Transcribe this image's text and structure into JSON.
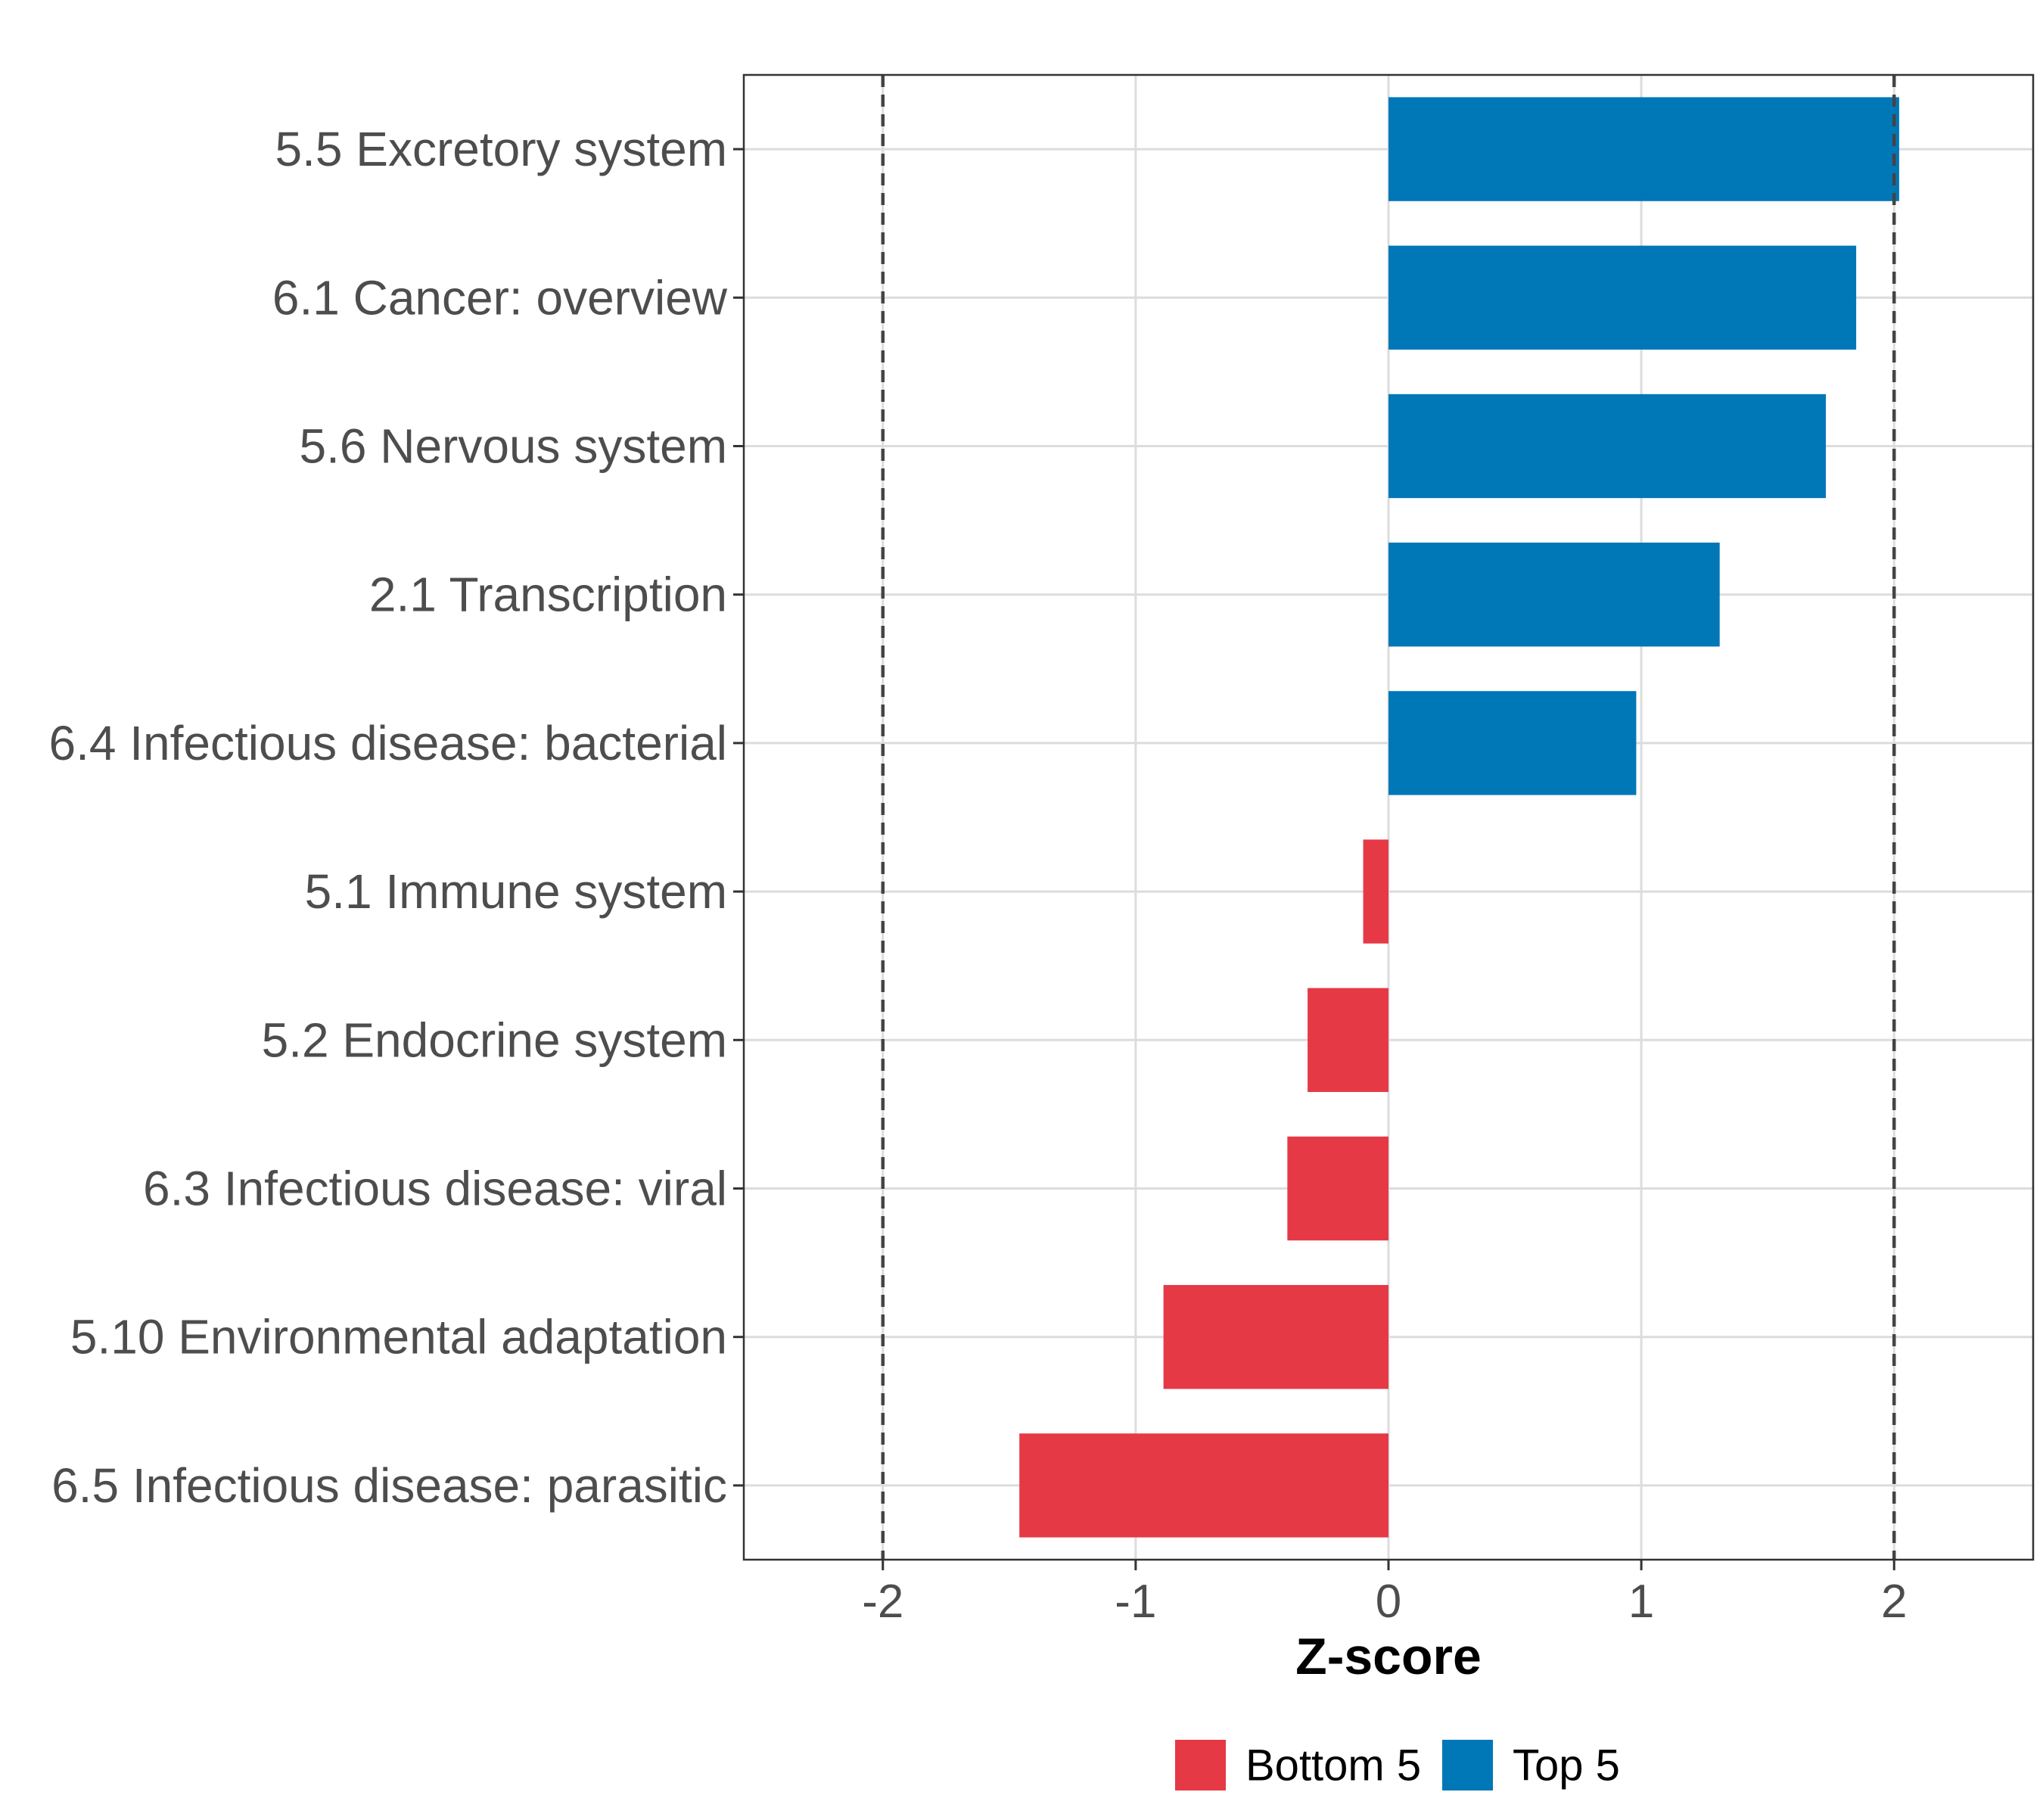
{
  "chart_data": {
    "type": "bar",
    "orientation": "horizontal",
    "title": "",
    "xlabel": "Z-score",
    "ylabel": "",
    "xlim": [
      -2.55,
      2.55
    ],
    "xticks": [
      -2,
      -1,
      0,
      1,
      2
    ],
    "xtick_labels": [
      "-2",
      "-1",
      "0",
      "1",
      "2"
    ],
    "reference_lines": [
      -2,
      2
    ],
    "grid": true,
    "legend_position": "bottom",
    "categories": [
      "5.5 Excretory system",
      "6.1 Cancer: overview",
      "5.6 Nervous system",
      "2.1 Transcription",
      "6.4 Infectious disease: bacterial",
      "5.1 Immune system",
      "5.2 Endocrine system",
      "6.3 Infectious disease: viral",
      "5.10 Environmental adaptation",
      "6.5 Infectious disease: parasitic"
    ],
    "values": [
      2.02,
      1.85,
      1.73,
      1.31,
      0.98,
      -0.1,
      -0.32,
      -0.4,
      -0.89,
      -1.46
    ],
    "groups": [
      "Top 5",
      "Top 5",
      "Top 5",
      "Top 5",
      "Top 5",
      "Bottom 5",
      "Bottom 5",
      "Bottom 5",
      "Bottom 5",
      "Bottom 5"
    ],
    "legend": [
      {
        "name": "Bottom 5",
        "color": "#E63946"
      },
      {
        "name": "Top 5",
        "color": "#0077B6"
      }
    ]
  }
}
